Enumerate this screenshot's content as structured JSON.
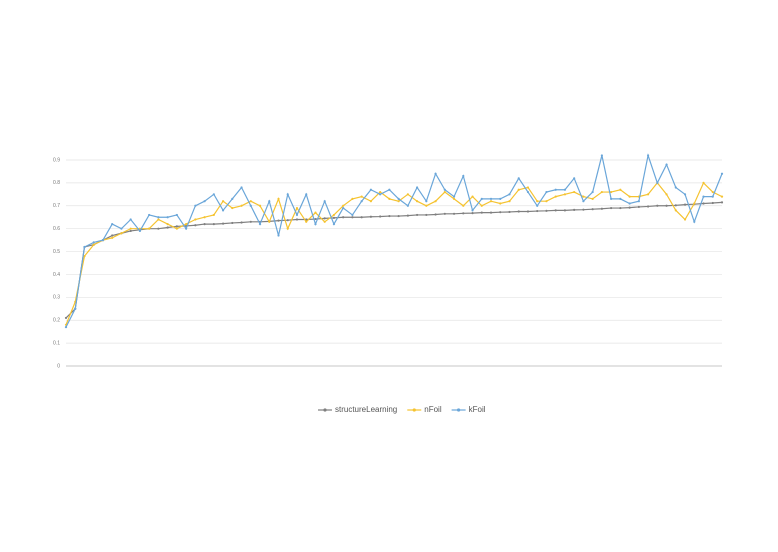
{
  "chart_data": {
    "type": "line",
    "categories": [
      null,
      null,
      null,
      null,
      null,
      null,
      null,
      null,
      null,
      null,
      null,
      null,
      null,
      null,
      null,
      null,
      null,
      null,
      null,
      null,
      null,
      null,
      null,
      null,
      null,
      null,
      null,
      null,
      null,
      null,
      null,
      null,
      null,
      null,
      null,
      null,
      null,
      null,
      null,
      null,
      null,
      null,
      null,
      null,
      null,
      null,
      null,
      null,
      null,
      null,
      null,
      null,
      null,
      null,
      null,
      null,
      null,
      null,
      null,
      null,
      null,
      null,
      null,
      null,
      null,
      null,
      null,
      null,
      null,
      null,
      null,
      null
    ],
    "series": [
      {
        "name": "structureLearning",
        "color": "#7f7f7f",
        "values": [
          0.21,
          0.25,
          0.52,
          0.53,
          0.55,
          0.57,
          0.58,
          0.59,
          0.595,
          0.6,
          0.6,
          0.605,
          0.61,
          0.612,
          0.615,
          0.62,
          0.62,
          0.622,
          0.625,
          0.627,
          0.63,
          0.63,
          0.632,
          0.635,
          0.637,
          0.64,
          0.64,
          0.642,
          0.645,
          0.647,
          0.65,
          0.65,
          0.65,
          0.652,
          0.653,
          0.655,
          0.655,
          0.657,
          0.66,
          0.66,
          0.662,
          0.665,
          0.665,
          0.667,
          0.668,
          0.67,
          0.67,
          0.672,
          0.673,
          0.675,
          0.675,
          0.677,
          0.678,
          0.68,
          0.68,
          0.682,
          0.683,
          0.685,
          0.687,
          0.69,
          0.69,
          0.692,
          0.695,
          0.697,
          0.7,
          0.7,
          0.702,
          0.705,
          0.707,
          0.71,
          0.712,
          0.715
        ]
      },
      {
        "name": "nFoil",
        "color": "#f5c330",
        "values": [
          0.18,
          0.28,
          0.48,
          0.53,
          0.55,
          0.56,
          0.58,
          0.6,
          0.6,
          0.6,
          0.64,
          0.62,
          0.6,
          0.62,
          0.64,
          0.65,
          0.66,
          0.72,
          0.69,
          0.7,
          0.72,
          0.7,
          0.63,
          0.73,
          0.6,
          0.69,
          0.63,
          0.67,
          0.63,
          0.66,
          0.7,
          0.73,
          0.74,
          0.72,
          0.76,
          0.73,
          0.72,
          0.75,
          0.72,
          0.7,
          0.72,
          0.76,
          0.73,
          0.7,
          0.74,
          0.7,
          0.72,
          0.71,
          0.72,
          0.77,
          0.78,
          0.72,
          0.72,
          0.74,
          0.75,
          0.76,
          0.74,
          0.73,
          0.76,
          0.76,
          0.77,
          0.74,
          0.74,
          0.75,
          0.8,
          0.75,
          0.68,
          0.64,
          0.71,
          0.8,
          0.76,
          0.74
        ]
      },
      {
        "name": "kFoil",
        "color": "#6aa6d9",
        "values": [
          0.17,
          0.25,
          0.52,
          0.54,
          0.55,
          0.62,
          0.6,
          0.64,
          0.59,
          0.66,
          0.65,
          0.65,
          0.66,
          0.6,
          0.7,
          0.72,
          0.75,
          0.68,
          0.73,
          0.78,
          0.7,
          0.62,
          0.72,
          0.57,
          0.75,
          0.66,
          0.75,
          0.62,
          0.72,
          0.62,
          0.69,
          0.66,
          0.72,
          0.77,
          0.75,
          0.77,
          0.73,
          0.7,
          0.78,
          0.72,
          0.84,
          0.77,
          0.74,
          0.83,
          0.68,
          0.73,
          0.73,
          0.73,
          0.75,
          0.82,
          0.76,
          0.7,
          0.76,
          0.77,
          0.77,
          0.82,
          0.72,
          0.76,
          0.92,
          0.73,
          0.73,
          0.71,
          0.72,
          0.92,
          0.8,
          0.88,
          0.78,
          0.75,
          0.63,
          0.74,
          0.74,
          0.84
        ]
      }
    ],
    "ylim": [
      0,
      0.9
    ],
    "yticks": [
      0,
      0.1,
      0.2,
      0.3,
      0.4,
      0.5,
      0.6,
      0.7,
      0.8,
      0.9
    ],
    "grid": true
  }
}
